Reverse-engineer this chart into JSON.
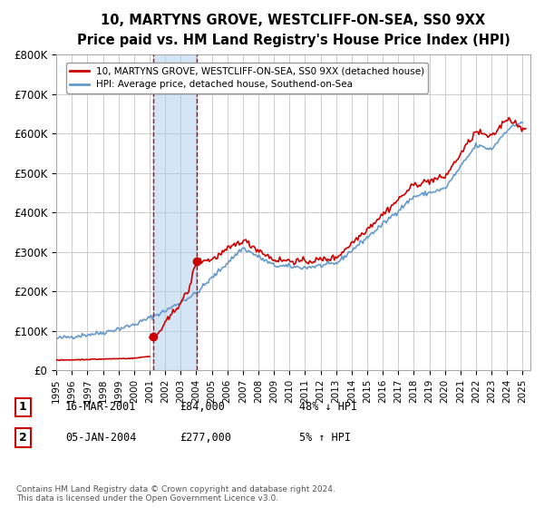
{
  "title": "10, MARTYNS GROVE, WESTCLIFF-ON-SEA, SS0 9XX",
  "subtitle": "Price paid vs. HM Land Registry's House Price Index (HPI)",
  "sale1_date_num": 2001.21,
  "sale2_date_num": 2004.01,
  "sale1_price": 84000,
  "sale2_price": 277000,
  "sale1_label": "1",
  "sale2_label": "2",
  "sale1_info": "16-MAR-2001",
  "sale1_price_str": "£84,000",
  "sale1_pct": "48% ↓ HPI",
  "sale2_info": "05-JAN-2004",
  "sale2_price_str": "£277,000",
  "sale2_pct": "5% ↑ HPI",
  "legend1": "10, MARTYNS GROVE, WESTCLIFF-ON-SEA, SS0 9XX (detached house)",
  "legend2": "HPI: Average price, detached house, Southend-on-Sea",
  "footer": "Contains HM Land Registry data © Crown copyright and database right 2024.\nThis data is licensed under the Open Government Licence v3.0.",
  "ylim": [
    0,
    800000
  ],
  "xlim_start": 1995.0,
  "xlim_end": 2025.5,
  "red_color": "#cc0000",
  "blue_color": "#6699cc",
  "shade_color": "#aaccee",
  "bg_color": "#ffffff",
  "grid_color": "#cccccc",
  "ytick_labels": [
    "£0",
    "£100K",
    "£200K",
    "£300K",
    "£400K",
    "£500K",
    "£600K",
    "£700K",
    "£800K"
  ],
  "ytick_values": [
    0,
    100000,
    200000,
    300000,
    400000,
    500000,
    600000,
    700000,
    800000
  ],
  "xtick_labels": [
    "1995",
    "1996",
    "1997",
    "1998",
    "1999",
    "2000",
    "2001",
    "2002",
    "2003",
    "2004",
    "2005",
    "2006",
    "2007",
    "2008",
    "2009",
    "2010",
    "2011",
    "2012",
    "2013",
    "2014",
    "2015",
    "2016",
    "2017",
    "2018",
    "2019",
    "2020",
    "2021",
    "2022",
    "2023",
    "2024",
    "2025"
  ],
  "xtick_values": [
    1995,
    1996,
    1997,
    1998,
    1999,
    2000,
    2001,
    2002,
    2003,
    2004,
    2005,
    2006,
    2007,
    2008,
    2009,
    2010,
    2011,
    2012,
    2013,
    2014,
    2015,
    2016,
    2017,
    2018,
    2019,
    2020,
    2021,
    2022,
    2023,
    2024,
    2025
  ]
}
